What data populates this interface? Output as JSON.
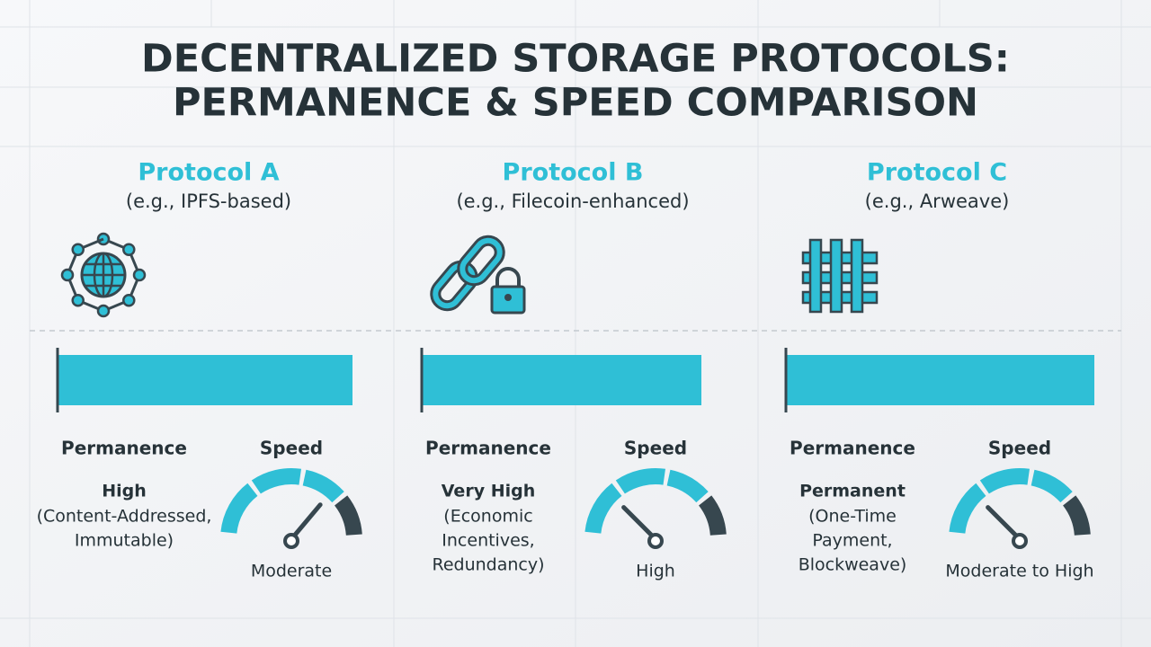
{
  "title_lines": [
    "DECENTRALIZED STORAGE PROTOCOLS:",
    "PERMANENCE & SPEED COMPARISON"
  ],
  "protocols": [
    {
      "name": "Protocol A",
      "example": "(e.g., IPFS-based)",
      "permanence_label": "Permanence",
      "permanence_level": "High",
      "permanence_detail": [
        "(Content-Addressed,",
        "Immutable)"
      ],
      "speed_label": "Speed",
      "speed_rating": "Moderate"
    },
    {
      "name": "Protocol B",
      "example": "(e.g., Filecoin-enhanced)",
      "permanence_label": "Permanence",
      "permanence_level": "Very High",
      "permanence_detail": [
        "(Economic",
        "Incentives,",
        "Redundancy)"
      ],
      "speed_label": "Speed",
      "speed_rating": "High"
    },
    {
      "name": "Protocol C",
      "example": "(e.g., Arweave)",
      "permanence_label": "Permanence",
      "permanence_level": "Permanent",
      "permanence_detail": [
        "(One-Time",
        "Payment,",
        "Blockweave)"
      ],
      "speed_label": "Speed",
      "speed_rating": "Moderate to High"
    }
  ]
}
